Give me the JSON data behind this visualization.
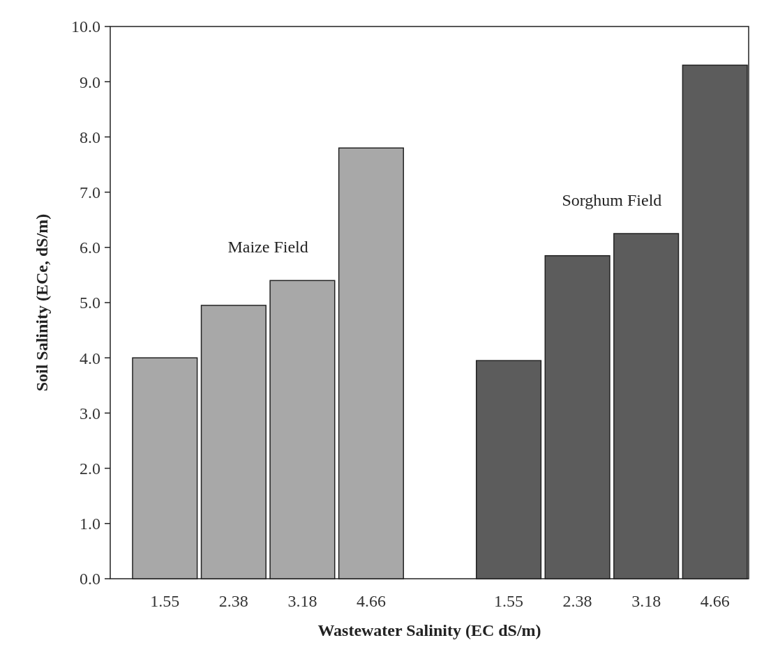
{
  "chart_data": {
    "type": "bar",
    "xlabel": "Wastewater Salinity (EC dS/m)",
    "ylabel": "Soil Salinity (ECe, dS/m)",
    "categories": [
      "1.55",
      "2.38",
      "3.18",
      "4.66",
      null,
      "1.55",
      "2.38",
      "3.18",
      "4.66"
    ],
    "series": [
      {
        "name": "Maize Field",
        "color": "#a8a8a8",
        "values": [
          4.0,
          4.95,
          5.4,
          7.8,
          null,
          null,
          null,
          null,
          null
        ]
      },
      {
        "name": "Sorghum Field",
        "color": "#5c5c5c",
        "values": [
          null,
          null,
          null,
          null,
          null,
          3.95,
          5.85,
          6.25,
          9.3
        ]
      }
    ],
    "ylim": [
      0,
      10
    ],
    "yticks": [
      {
        "value": 0,
        "label": "0.0"
      },
      {
        "value": 1,
        "label": "1.0"
      },
      {
        "value": 2,
        "label": "2.0"
      },
      {
        "value": 3,
        "label": "3.0"
      },
      {
        "value": 4,
        "label": "4.0"
      },
      {
        "value": 5,
        "label": "5.0"
      },
      {
        "value": 6,
        "label": "6.0"
      },
      {
        "value": 7,
        "label": "7.0"
      },
      {
        "value": 8,
        "label": "8.0"
      },
      {
        "value": 9,
        "label": "9.0"
      },
      {
        "value": 10,
        "label": "10.0"
      }
    ],
    "grid": false
  }
}
